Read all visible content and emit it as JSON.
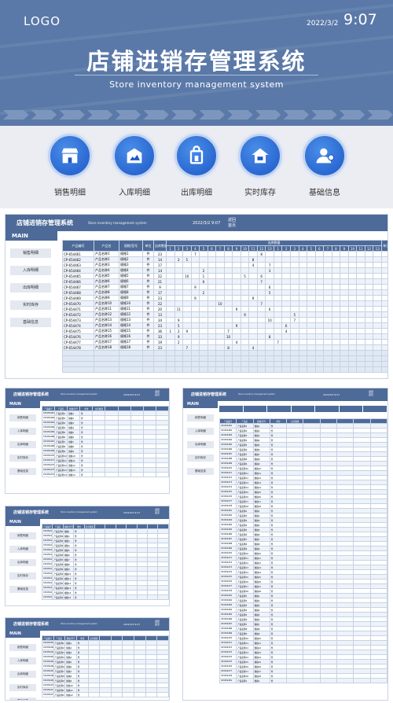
{
  "header": {
    "logo": "LOGO",
    "date": "2022/3/2",
    "time": "9:07",
    "title": "店铺进销存管理系统",
    "subtitle": "Store inventory management system"
  },
  "nav": [
    {
      "label": "销售明细",
      "icon": "storefront-icon"
    },
    {
      "label": "入库明细",
      "icon": "warehouse-image-icon"
    },
    {
      "label": "出库明细",
      "icon": "shopping-bag-hand-icon"
    },
    {
      "label": "实时库存",
      "icon": "home-box-icon"
    },
    {
      "label": "基础信息",
      "icon": "user-info-icon"
    }
  ],
  "screen": {
    "title": "店铺进销存管理系统",
    "subtitle": "Store inventory management system",
    "datetime": "2022/3/2 9:07",
    "back_label": "返回",
    "home_label": "首页",
    "main_label": "MAIN",
    "menu": [
      "销售明细",
      "入库明细",
      "出库明细",
      "实时库存",
      "基础信息"
    ],
    "columns": [
      "产品编号",
      "产品名",
      "规格/型号",
      "单位",
      "出库数量"
    ],
    "outbound_group": "出库数量",
    "subtotal_label": "单日",
    "days": [
      "1",
      "2",
      "3",
      "4",
      "5",
      "6",
      "7",
      "8",
      "9",
      "10",
      "11",
      "12",
      "13",
      "1",
      "2",
      "3",
      "4",
      "5",
      "6",
      "7",
      "8",
      "9",
      "10",
      "11",
      "12",
      "13"
    ],
    "rows": [
      {
        "code": "CP-654461",
        "name": "产品名称1",
        "spec": "规格1",
        "unit": "件",
        "qty": "23"
      },
      {
        "code": "CP-654462",
        "name": "产品名称2",
        "spec": "规格2",
        "unit": "件",
        "qty": "14"
      },
      {
        "code": "CP-654463",
        "name": "产品名称3",
        "spec": "规格3",
        "unit": "件",
        "qty": "17"
      },
      {
        "code": "CP-654464",
        "name": "产品名称4",
        "spec": "规格4",
        "unit": "件",
        "qty": "14"
      },
      {
        "code": "CP-654465",
        "name": "产品名称5",
        "spec": "规格5",
        "unit": "件",
        "qty": "22"
      },
      {
        "code": "CP-654466",
        "name": "产品名称6",
        "spec": "规格6",
        "unit": "件",
        "qty": "21"
      },
      {
        "code": "CP-654467",
        "name": "产品名称7",
        "spec": "规格7",
        "unit": "件",
        "qty": "9"
      },
      {
        "code": "CP-654468",
        "name": "产品名称8",
        "spec": "规格8",
        "unit": "件",
        "qty": "17"
      },
      {
        "code": "CP-654469",
        "name": "产品名称9",
        "spec": "规格9",
        "unit": "件",
        "qty": "23"
      },
      {
        "code": "CP-654470",
        "name": "产品名称10",
        "spec": "规格10",
        "unit": "件",
        "qty": "22"
      },
      {
        "code": "CP-654471",
        "name": "产品名称11",
        "spec": "规格11",
        "unit": "件",
        "qty": "20"
      },
      {
        "code": "CP-654472",
        "name": "产品名称12",
        "spec": "规格12",
        "unit": "件",
        "qty": "13"
      },
      {
        "code": "CP-654473",
        "name": "产品名称13",
        "spec": "规格13",
        "unit": "件",
        "qty": "34"
      },
      {
        "code": "CP-654474",
        "name": "产品名称14",
        "spec": "规格14",
        "unit": "件",
        "qty": "23"
      },
      {
        "code": "CP-654475",
        "name": "产品名称15",
        "spec": "规格15",
        "unit": "件",
        "qty": "36"
      },
      {
        "code": "CP-654476",
        "name": "产品名称16",
        "spec": "规格16",
        "unit": "件",
        "qty": "33"
      },
      {
        "code": "CP-654477",
        "name": "产品名称17",
        "spec": "规格17",
        "unit": "件",
        "qty": "19"
      },
      {
        "code": "CP-654478",
        "name": "产品名称18",
        "spec": "规格18",
        "unit": "件",
        "qty": "23"
      }
    ],
    "cells": [
      {
        "row": 0,
        "col": 3,
        "v": "7"
      },
      {
        "row": 0,
        "col": 11,
        "v": "8"
      },
      {
        "row": 1,
        "col": 1,
        "v": "2"
      },
      {
        "row": 1,
        "col": 2,
        "v": "5"
      },
      {
        "row": 1,
        "col": 10,
        "v": "8"
      },
      {
        "row": 2,
        "col": 10,
        "v": "4"
      },
      {
        "row": 2,
        "col": 12,
        "v": "7"
      },
      {
        "row": 3,
        "col": 4,
        "v": "2"
      },
      {
        "row": 3,
        "col": 12,
        "v": "3"
      },
      {
        "row": 4,
        "col": 2,
        "v": "10"
      },
      {
        "row": 4,
        "col": 4,
        "v": "1"
      },
      {
        "row": 4,
        "col": 9,
        "v": "5"
      },
      {
        "row": 4,
        "col": 11,
        "v": "6"
      },
      {
        "row": 5,
        "col": 4,
        "v": "6"
      },
      {
        "row": 5,
        "col": 11,
        "v": "7"
      },
      {
        "row": 6,
        "col": 3,
        "v": "9"
      },
      {
        "row": 6,
        "col": 12,
        "v": "6"
      },
      {
        "row": 7,
        "col": 4,
        "v": "2"
      },
      {
        "row": 7,
        "col": 12,
        "v": "5"
      },
      {
        "row": 8,
        "col": 3,
        "v": "9"
      },
      {
        "row": 8,
        "col": 10,
        "v": "9"
      },
      {
        "row": 9,
        "col": 6,
        "v": "10"
      },
      {
        "row": 9,
        "col": 11,
        "v": "7"
      },
      {
        "row": 10,
        "col": 1,
        "v": "11"
      },
      {
        "row": 10,
        "col": 8,
        "v": "9"
      },
      {
        "row": 10,
        "col": 12,
        "v": "6"
      },
      {
        "row": 11,
        "col": 9,
        "v": "9"
      },
      {
        "row": 11,
        "col": 15,
        "v": "5"
      },
      {
        "row": 12,
        "col": 1,
        "v": "9"
      },
      {
        "row": 12,
        "col": 12,
        "v": "10"
      },
      {
        "row": 12,
        "col": 15,
        "v": "7"
      },
      {
        "row": 13,
        "col": 1,
        "v": "5"
      },
      {
        "row": 13,
        "col": 8,
        "v": "9"
      },
      {
        "row": 13,
        "col": 14,
        "v": "6"
      },
      {
        "row": 14,
        "col": 0,
        "v": "1"
      },
      {
        "row": 14,
        "col": 1,
        "v": "2"
      },
      {
        "row": 14,
        "col": 2,
        "v": "9"
      },
      {
        "row": 14,
        "col": 7,
        "v": "7"
      },
      {
        "row": 14,
        "col": 14,
        "v": "4"
      },
      {
        "row": 15,
        "col": 1,
        "v": "9"
      },
      {
        "row": 15,
        "col": 7,
        "v": "10"
      },
      {
        "row": 15,
        "col": 12,
        "v": "8"
      },
      {
        "row": 16,
        "col": 1,
        "v": "2"
      },
      {
        "row": 16,
        "col": 8,
        "v": "4"
      },
      {
        "row": 16,
        "col": 13,
        "v": "7"
      },
      {
        "row": 17,
        "col": 2,
        "v": "7"
      },
      {
        "row": 17,
        "col": 7,
        "v": "8"
      },
      {
        "row": 17,
        "col": 10,
        "v": "4"
      }
    ]
  },
  "colors": {
    "header_bg": "#5a79a8",
    "screen_header": "#4d6a98",
    "nav_bg": "#ebedf2",
    "icon_blue": "#1d58c9"
  }
}
